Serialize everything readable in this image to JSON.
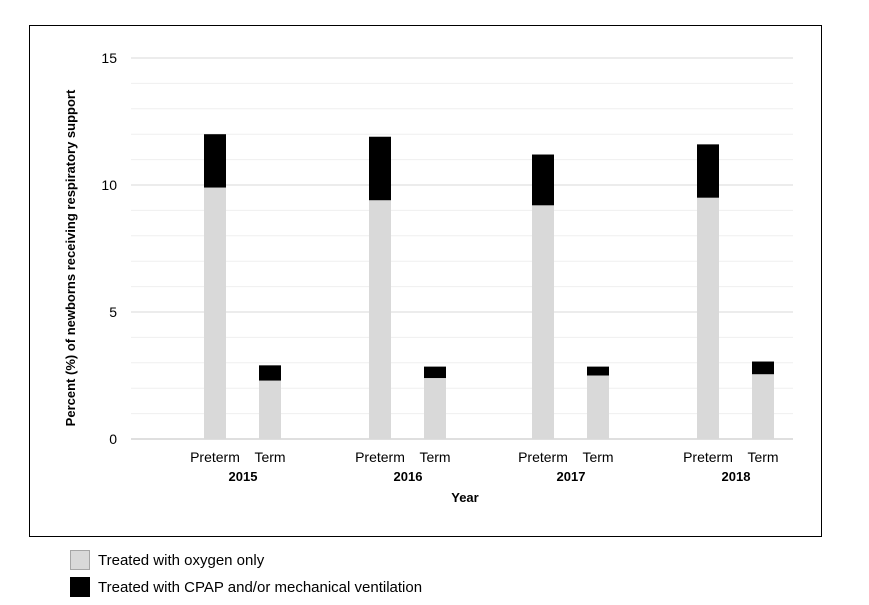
{
  "chart_data": {
    "type": "bar",
    "stacked": true,
    "ylabel": "Percent  (%) of newborns receiving respiratory support",
    "xlabel": "Year",
    "ylim": [
      0,
      15
    ],
    "yticks": [
      0,
      5,
      10,
      15
    ],
    "minor_grid_step": 1,
    "groups": [
      {
        "year": "2015",
        "bars": [
          {
            "label": "Preterm",
            "values": [
              9.9,
              2.1
            ]
          },
          {
            "label": "Term",
            "values": [
              2.3,
              0.6
            ]
          }
        ]
      },
      {
        "year": "2016",
        "bars": [
          {
            "label": "Preterm",
            "values": [
              9.4,
              2.5
            ]
          },
          {
            "label": "Term",
            "values": [
              2.4,
              0.45
            ]
          }
        ]
      },
      {
        "year": "2017",
        "bars": [
          {
            "label": "Preterm",
            "values": [
              9.2,
              2.0
            ]
          },
          {
            "label": "Term",
            "values": [
              2.5,
              0.35
            ]
          }
        ]
      },
      {
        "year": "2018",
        "bars": [
          {
            "label": "Preterm",
            "values": [
              9.5,
              2.1
            ]
          },
          {
            "label": "Term",
            "values": [
              2.55,
              0.5
            ]
          }
        ]
      }
    ],
    "series": [
      {
        "name": "Treated with oxygen only",
        "color": "#d9d9d9"
      },
      {
        "name": "Treated with CPAP and/or mechanical ventilation",
        "color": "#000000"
      }
    ],
    "legend_position": "bottom-left, outside"
  }
}
